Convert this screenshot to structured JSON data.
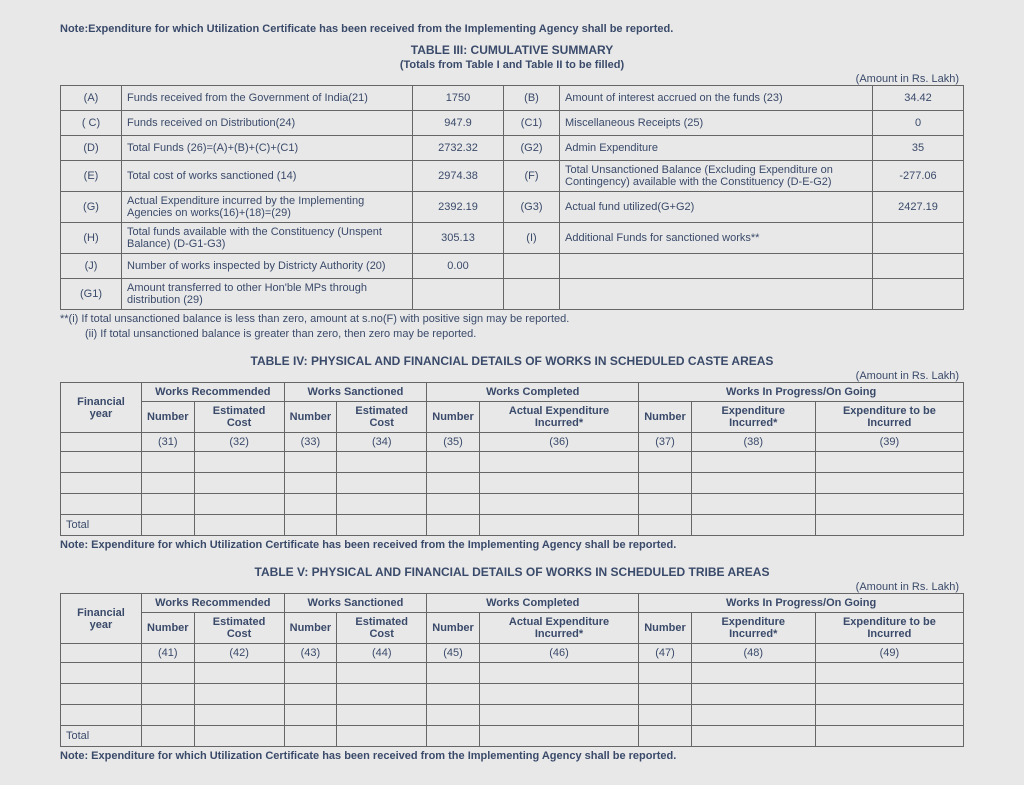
{
  "top_note": "Note:Expenditure for which Utilization Certificate has been received from the Implementing Agency shall be reported.",
  "table3": {
    "title": "TABLE III: CUMULATIVE SUMMARY",
    "subtitle": "(Totals from Table I and Table II to be filled)",
    "amount_label": "(Amount in Rs. Lakh)",
    "rows": [
      {
        "l": "(A)",
        "d": "Funds received from the Government of India(21)",
        "v": "1750",
        "l2": "(B)",
        "d2": "Amount of interest accrued on the funds (23)",
        "v2": "34.42"
      },
      {
        "l": "( C)",
        "d": "Funds received on Distribution(24)",
        "v": "947.9",
        "l2": "(C1)",
        "d2": "Miscellaneous Receipts (25)",
        "v2": "0"
      },
      {
        "l": "(D)",
        "d": "Total Funds (26)=(A)+(B)+(C)+(C1)",
        "v": "2732.32",
        "l2": "(G2)",
        "d2": "Admin Expenditure",
        "v2": "35"
      },
      {
        "l": "(E)",
        "d": "Total cost of works sanctioned (14)",
        "v": "2974.38",
        "l2": "(F)",
        "d2": "Total Unsanctioned Balance (Excluding Expenditure on Contingency) available with the Constituency (D-E-G2)",
        "v2": "-277.06"
      },
      {
        "l": "(G)",
        "d": "Actual Expenditure incurred by the Implementing Agencies on works(16)+(18)=(29)",
        "v": "2392.19",
        "l2": "(G3)",
        "d2": "Actual fund utilized(G+G2)",
        "v2": "2427.19"
      },
      {
        "l": "(H)",
        "d": "Total funds available with the Constituency (Unspent Balance) (D-G1-G3)",
        "v": "305.13",
        "l2": "(I)",
        "d2": "Additional Funds for sanctioned works**",
        "v2": ""
      },
      {
        "l": "(J)",
        "d": "Number of works inspected by Districty Authority (20)",
        "v": "0.00",
        "l2": "",
        "d2": "",
        "v2": ""
      },
      {
        "l": "(G1)",
        "d": "Amount transferred to other Hon'ble MPs through distribution (29)",
        "v": "",
        "l2": "",
        "d2": "",
        "v2": ""
      }
    ],
    "footnote1": "**(i) If total unsanctioned balance is less than zero, amount at s.no(F) with positive sign may be reported.",
    "footnote2": "(ii) If total unsanctioned balance is greater than zero, then zero may be reported."
  },
  "table4": {
    "title": "TABLE IV:  PHYSICAL AND FINANCIAL DETAILS OF WORKS IN SCHEDULED CASTE AREAS",
    "amount_label": "(Amount in Rs. Lakh)",
    "groups": [
      "Works Recommended",
      "Works Sanctioned",
      "Works Completed",
      "Works In Progress/On Going"
    ],
    "sub": {
      "fy": "Financial year",
      "num": "Number",
      "estcost": "Estimated Cost",
      "estcost2": "Estimated Cost",
      "actual": "Actual Expenditure Incurred*",
      "expinc": "Expenditure Incurred*",
      "exptbi": "Expenditure to be Incurred"
    },
    "nums": [
      "(31)",
      "(32)",
      "(33)",
      "(34)",
      "(35)",
      "(36)",
      "(37)",
      "(38)",
      "(39)"
    ],
    "total": "Total",
    "note": "Note: Expenditure for which Utilization Certificate has been received from the Implementing Agency shall be reported."
  },
  "table5": {
    "title": "TABLE V:  PHYSICAL AND FINANCIAL DETAILS OF WORKS IN SCHEDULED TRIBE AREAS",
    "amount_label": "(Amount in Rs. Lakh)",
    "nums": [
      "(41)",
      "(42)",
      "(43)",
      "(44)",
      "(45)",
      "(46)",
      "(47)",
      "(48)",
      "(49)"
    ],
    "total": "Total",
    "note": "Note: Expenditure for which Utilization Certificate has been received from the Implementing Agency shall be reported."
  }
}
